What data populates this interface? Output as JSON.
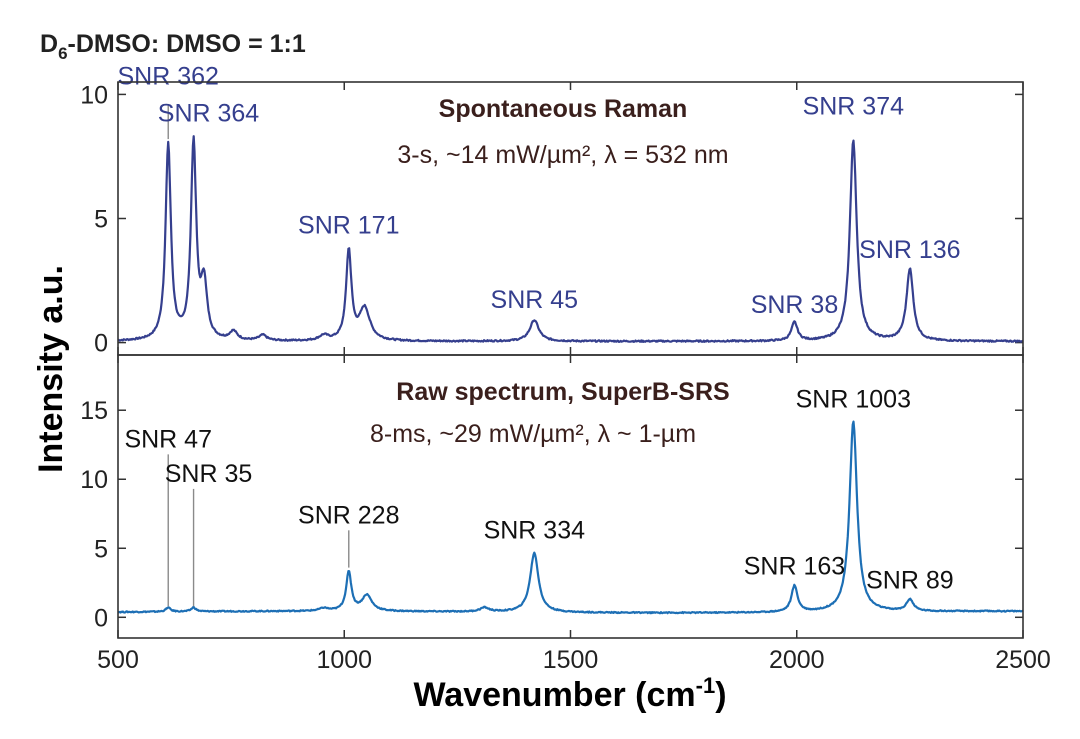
{
  "figure_title": "D6-DMSO: DMSO = 1:1",
  "figure_title_parts": {
    "base": "D",
    "sub": "6",
    "rest": "-DMSO: DMSO = 1:1"
  },
  "chart_data": [
    {
      "type": "line",
      "panel": "top",
      "title": "Spontaneous Raman",
      "subtitle": "3-s, ~14 mW/µm², λ = 532 nm",
      "color": "#353f8e",
      "xlim": [
        500,
        2500
      ],
      "ylim": [
        -0.5,
        10.5
      ],
      "yticks": [
        0,
        5,
        10
      ],
      "baseline": 0.05,
      "peaks": [
        {
          "x": 611,
          "height": 7.9,
          "width": 7
        },
        {
          "x": 667,
          "height": 7.9,
          "width": 7
        },
        {
          "x": 690,
          "height": 2.2,
          "width": 8
        },
        {
          "x": 755,
          "height": 0.35,
          "width": 10
        },
        {
          "x": 820,
          "height": 0.22,
          "width": 10
        },
        {
          "x": 955,
          "height": 0.2,
          "width": 12
        },
        {
          "x": 1010,
          "height": 3.6,
          "width": 7
        },
        {
          "x": 1045,
          "height": 1.3,
          "width": 14
        },
        {
          "x": 1420,
          "height": 0.85,
          "width": 12
        },
        {
          "x": 1995,
          "height": 0.75,
          "width": 8
        },
        {
          "x": 2125,
          "height": 8.1,
          "width": 9
        },
        {
          "x": 2250,
          "height": 2.9,
          "width": 9
        }
      ],
      "annotations": [
        {
          "text": "SNR 362",
          "x": 611,
          "y": 10.4
        },
        {
          "text": "SNR 364",
          "x": 700,
          "y": 8.9
        },
        {
          "text": "SNR 171",
          "x": 1010,
          "y": 4.4
        },
        {
          "text": "SNR 45",
          "x": 1420,
          "y": 1.4
        },
        {
          "text": "SNR 38",
          "x": 1995,
          "y": 1.2
        },
        {
          "text": "SNR 374",
          "x": 2125,
          "y": 9.2
        },
        {
          "text": "SNR 136",
          "x": 2250,
          "y": 3.4
        }
      ],
      "leader_lines": [
        {
          "x": 611,
          "y_from": 9.6,
          "y_to": 8.2
        }
      ]
    },
    {
      "type": "line",
      "panel": "bottom",
      "title": "Raw spectrum, SuperB-SRS",
      "subtitle": "8-ms, ~29 mW/µm², λ ~ 1-µm",
      "color": "#1d6fb5",
      "xlim": [
        500,
        2500
      ],
      "ylim": [
        -1.5,
        19.0
      ],
      "yticks": [
        0,
        5,
        10,
        15
      ],
      "baseline": 0.38,
      "peaks": [
        {
          "x": 611,
          "height": 0.3,
          "width": 6
        },
        {
          "x": 667,
          "height": 0.3,
          "width": 6
        },
        {
          "x": 955,
          "height": 0.2,
          "width": 12
        },
        {
          "x": 1010,
          "height": 2.8,
          "width": 7
        },
        {
          "x": 1050,
          "height": 1.15,
          "width": 13
        },
        {
          "x": 1310,
          "height": 0.3,
          "width": 12
        },
        {
          "x": 1420,
          "height": 4.3,
          "width": 11
        },
        {
          "x": 1995,
          "height": 1.9,
          "width": 8
        },
        {
          "x": 2125,
          "height": 13.8,
          "width": 10
        },
        {
          "x": 2250,
          "height": 0.85,
          "width": 9
        }
      ],
      "annotations": [
        {
          "text": "SNR 47",
          "x": 611,
          "y": 12.3
        },
        {
          "text": "SNR 35",
          "x": 700,
          "y": 9.8
        },
        {
          "text": "SNR 228",
          "x": 1010,
          "y": 6.8
        },
        {
          "text": "SNR 334",
          "x": 1420,
          "y": 5.7
        },
        {
          "text": "SNR 163",
          "x": 1995,
          "y": 3.1
        },
        {
          "text": "SNR 1003",
          "x": 2125,
          "y": 15.2
        },
        {
          "text": "SNR 89",
          "x": 2250,
          "y": 2.1
        }
      ],
      "leader_lines": [
        {
          "x": 611,
          "y_from": 11.8,
          "y_to": 0.8
        },
        {
          "x": 667,
          "y_from": 9.3,
          "y_to": 0.8
        },
        {
          "x": 1010,
          "y_from": 6.3,
          "y_to": 3.6
        }
      ]
    }
  ],
  "x_axis": {
    "label": "Wavenumber (cm-1)",
    "label_parts": {
      "base": "Wavenumber (cm",
      "sup": "-1",
      "rest": ")"
    },
    "ticks": [
      500,
      1000,
      1500,
      2000,
      2500
    ]
  },
  "y_axis": {
    "label": "Intensity a.u."
  }
}
